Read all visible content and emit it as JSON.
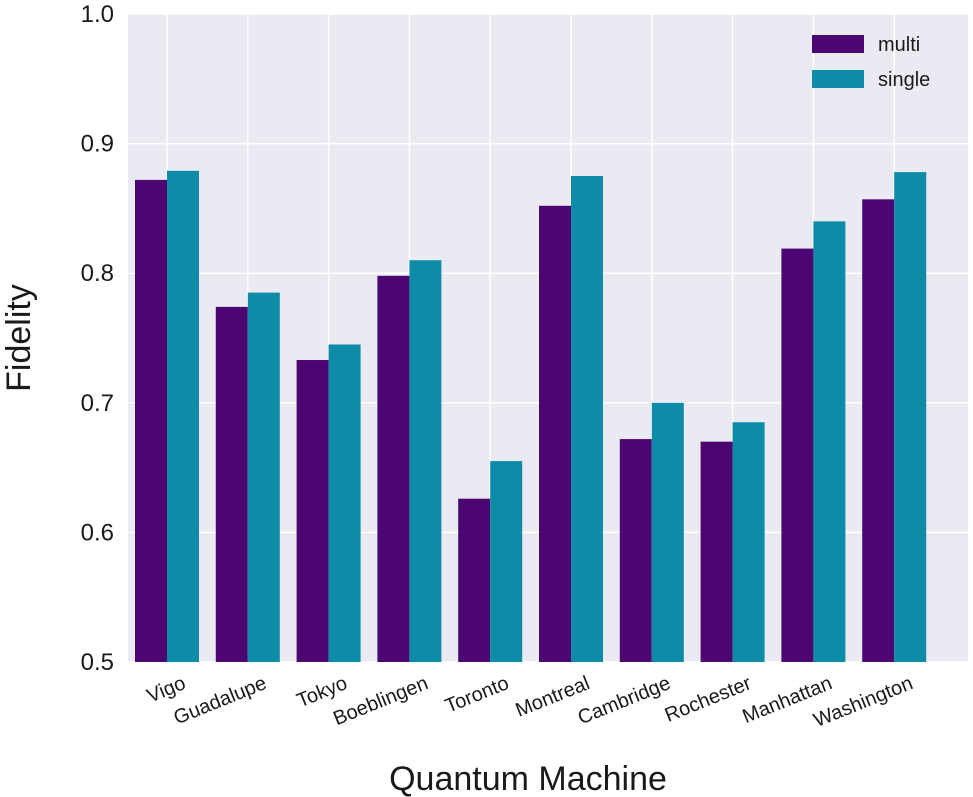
{
  "chart_data": {
    "type": "bar",
    "title": "",
    "xlabel": "Quantum Machine",
    "ylabel": "Fidelity",
    "ylim": [
      0.5,
      1.0
    ],
    "yticks": [
      "0.5",
      "0.6",
      "0.7",
      "0.8",
      "0.9",
      "1.0"
    ],
    "grid": true,
    "legend_position": "top-right",
    "categories": [
      "Vigo",
      "Guadalupe",
      "Tokyo",
      "Boeblingen",
      "Toronto",
      "Montreal",
      "Cambridge",
      "Rochester",
      "Manhattan",
      "Washington"
    ],
    "series": [
      {
        "name": "multi",
        "color": "#4b0672",
        "values": [
          0.872,
          0.774,
          0.733,
          0.798,
          0.626,
          0.852,
          0.672,
          0.67,
          0.819,
          0.857
        ]
      },
      {
        "name": "single",
        "color": "#0e8ba7",
        "values": [
          0.879,
          0.785,
          0.745,
          0.81,
          0.655,
          0.875,
          0.7,
          0.685,
          0.84,
          0.878
        ]
      }
    ]
  }
}
